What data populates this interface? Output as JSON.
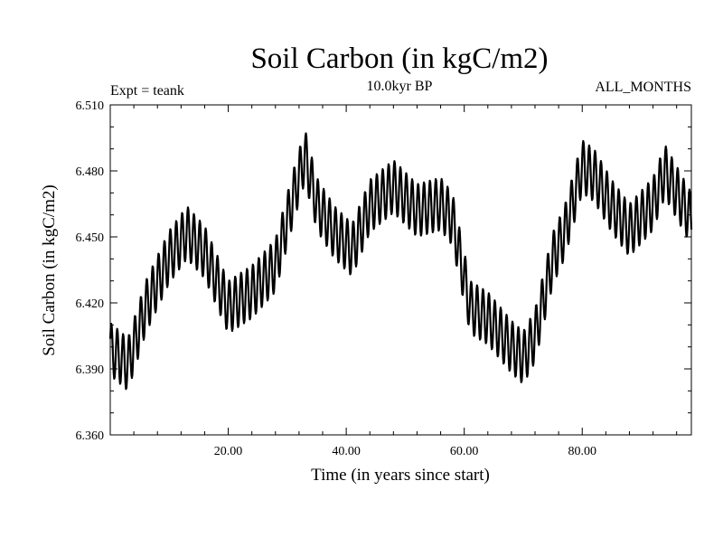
{
  "chart_data": {
    "type": "line",
    "title": "Soil Carbon (in kgC/m2)",
    "subtitle": "10.0kyr BP",
    "experiment": "Expt = teank",
    "period": "ALL_MONTHS",
    "xlabel": "Time (in years since start)",
    "ylabel": "Soil Carbon (in kgC/m2)",
    "xlim": [
      0,
      98.5
    ],
    "ylim": [
      6.36,
      6.51
    ],
    "x_ticks": [
      20,
      40,
      60,
      80
    ],
    "x_tick_labels": [
      "20.00",
      "40.00",
      "60.00",
      "80.00"
    ],
    "y_ticks": [
      6.36,
      6.39,
      6.42,
      6.45,
      6.48,
      6.51
    ],
    "y_tick_labels": [
      "6.360",
      "6.390",
      "6.420",
      "6.450",
      "6.480",
      "6.510"
    ],
    "grid": false,
    "series": [
      {
        "name": "Soil Carbon",
        "color": "#000000",
        "samples_per_year": 12,
        "annual_mean_years": [
          0,
          3,
          6,
          10,
          13,
          16,
          20,
          24,
          28,
          31,
          33,
          35,
          38,
          41,
          44,
          48,
          52,
          56,
          58,
          61,
          64,
          68,
          70,
          72,
          75,
          77,
          80,
          82,
          85,
          88,
          92,
          94,
          98.5
        ],
        "annual_mean_values": [
          6.399,
          6.392,
          6.418,
          6.441,
          6.452,
          6.443,
          6.418,
          6.425,
          6.437,
          6.468,
          6.487,
          6.465,
          6.452,
          6.444,
          6.464,
          6.473,
          6.462,
          6.465,
          6.458,
          6.418,
          6.413,
          6.4,
          6.395,
          6.405,
          6.44,
          6.452,
          6.482,
          6.478,
          6.464,
          6.453,
          6.465,
          6.48,
          6.458
        ],
        "seasonal_amplitude": 0.012
      }
    ]
  }
}
